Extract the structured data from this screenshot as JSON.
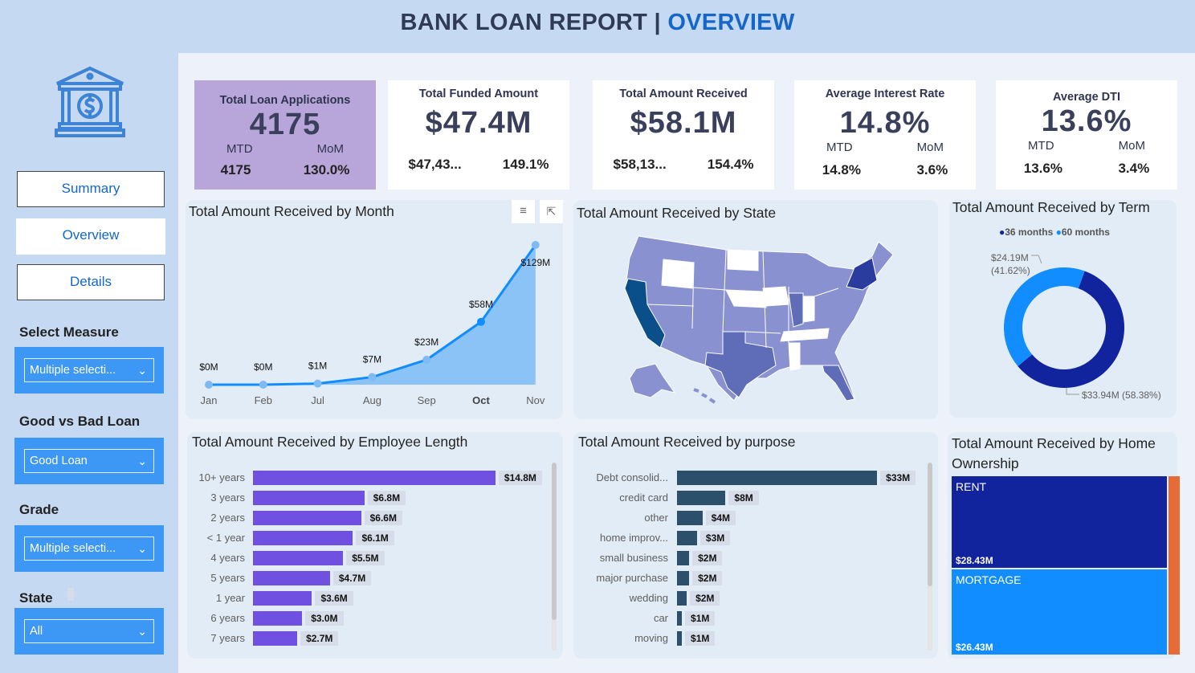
{
  "header": {
    "title": "BANK LOAN REPORT | ",
    "title_accent": "OVERVIEW"
  },
  "sidebar": {
    "logo_icon": "bank-dollar-icon",
    "nav": [
      {
        "label": "Summary"
      },
      {
        "label": "Overview"
      },
      {
        "label": "Details"
      }
    ],
    "filters": [
      {
        "label": "Select Measure",
        "value": "Multiple selecti..."
      },
      {
        "label": "Good vs Bad Loan",
        "value": "Good Loan"
      },
      {
        "label": "Grade",
        "value": "Multiple selecti..."
      },
      {
        "label": "State",
        "value": "All"
      }
    ]
  },
  "kpis": [
    {
      "title": "Total Loan Applications",
      "value": "4175",
      "mtd_label": "MTD",
      "mom_label": "MoM",
      "mtd": "4175",
      "mom": "130.0%",
      "bg": "#b8a6da"
    },
    {
      "title": "Total Funded Amount",
      "value": "$47.4M",
      "mtd": "$47,43...",
      "mom": "149.1%"
    },
    {
      "title": "Total Amount Received",
      "value": "$58.1M",
      "mtd": "$58,13...",
      "mom": "154.4%"
    },
    {
      "title": "Average Interest Rate",
      "value": "14.8%",
      "mtd_label": "MTD",
      "mom_label": "MoM",
      "mtd": "14.8%",
      "mom": "3.6%"
    },
    {
      "title": "Average DTI",
      "value": "13.6%",
      "mtd_label": "MTD",
      "mom_label": "MoM",
      "mtd": "13.6%",
      "mom": "3.4%"
    }
  ],
  "chart_data": [
    {
      "type": "area",
      "title": "Total Amount Received by Month",
      "categories": [
        "Jan",
        "Feb",
        "Jul",
        "Aug",
        "Sep",
        "Oct",
        "Nov"
      ],
      "values": [
        0,
        0,
        1,
        7,
        23,
        58,
        129
      ],
      "labels": [
        "$0M",
        "$0M",
        "$1M",
        "$7M",
        "$23M",
        "$58M",
        "$129M"
      ],
      "highlighted": "Oct",
      "color": "#118dff"
    },
    {
      "type": "map",
      "title": "Total Amount Received by State"
    },
    {
      "type": "pie",
      "title": "Total Amount Received by Term",
      "series": [
        {
          "name": "36 months",
          "value": 33.94,
          "label": "$33.94M (58.38%)",
          "color": "#12239e"
        },
        {
          "name": "60 months",
          "value": 24.19,
          "label": "$24.19M",
          "pct": "(41.62%)",
          "color": "#118dff"
        }
      ],
      "legend": "top"
    },
    {
      "type": "bar",
      "title": "Total Amount Received by Employee Length",
      "categories": [
        "10+ years",
        "3 years",
        "2 years",
        "< 1 year",
        "4 years",
        "5 years",
        "1 year",
        "6 years",
        "7 years"
      ],
      "values": [
        14.8,
        6.8,
        6.6,
        6.1,
        5.5,
        4.7,
        3.6,
        3.0,
        2.7
      ],
      "labels": [
        "$14.8M",
        "$6.8M",
        "$6.6M",
        "$6.1M",
        "$5.5M",
        "$4.7M",
        "$3.6M",
        "$3.0M",
        "$2.7M"
      ],
      "color": "#7050e0"
    },
    {
      "type": "bar",
      "title": "Total Amount Received by purpose",
      "categories": [
        "Debt consolid...",
        "credit card",
        "other",
        "home improv...",
        "small business",
        "major purchase",
        "wedding",
        "car",
        "moving"
      ],
      "values": [
        33,
        8,
        4.2,
        3.3,
        2,
        2,
        1.6,
        0.8,
        0.8
      ],
      "labels": [
        "$33M",
        "$8M",
        "$4M",
        "$3M",
        "$2M",
        "$2M",
        "$2M",
        "$1M",
        "$1M"
      ],
      "color": "#2c4f6b"
    },
    {
      "type": "treemap",
      "title": "Total Amount Received by Home Ownership",
      "items": [
        {
          "name": "RENT",
          "value": 28.43,
          "label": "$28.43M",
          "color": "#12239e"
        },
        {
          "name": "MORTGAGE",
          "value": 26.43,
          "label": "$26.43M",
          "color": "#118dff"
        },
        {
          "name": "",
          "color": "#e66c37"
        }
      ]
    }
  ]
}
